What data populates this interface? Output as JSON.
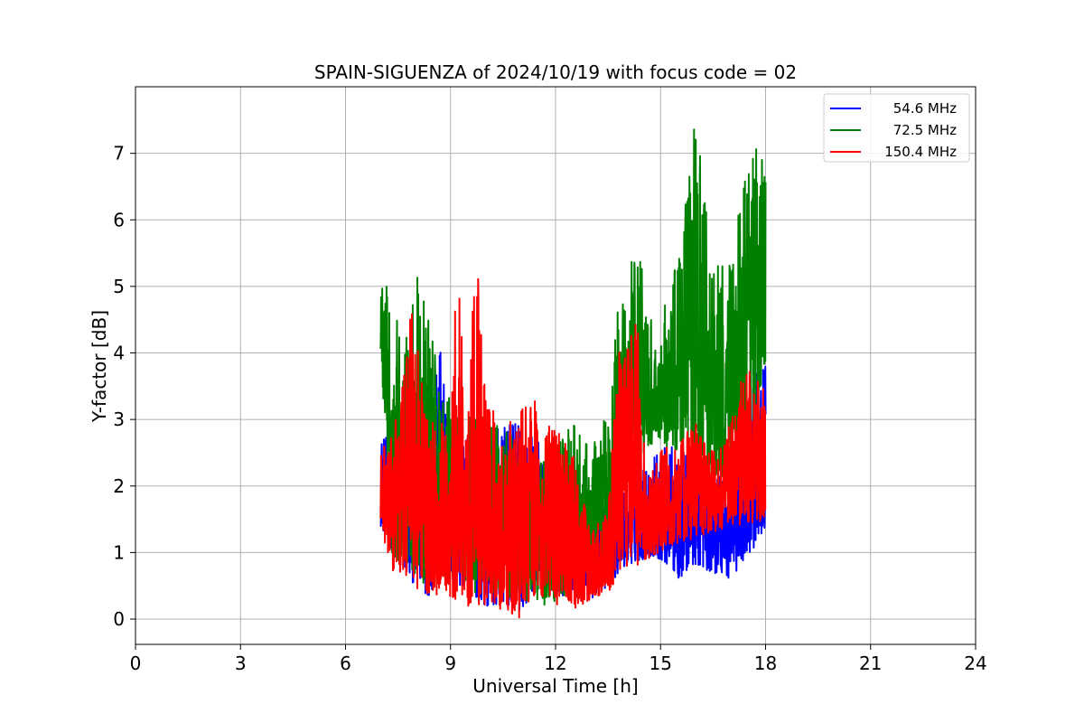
{
  "chart_data": {
    "type": "line",
    "title": "SPAIN-SIGUENZA of 2024/10/19 with focus code = 02",
    "xlabel": "Universal Time [h]",
    "ylabel": "Y-factor [dB]",
    "xlim": [
      0,
      24
    ],
    "ylim": [
      -0.38,
      8.0
    ],
    "xticks": [
      "0",
      "3",
      "6",
      "9",
      "12",
      "15",
      "18",
      "21",
      "24"
    ],
    "yticks": [
      "0",
      "1",
      "2",
      "3",
      "4",
      "5",
      "6",
      "7"
    ],
    "grid": true,
    "legend_position": "top-right",
    "series": [
      {
        "name": "54.6 MHz",
        "color": "#0000ff",
        "x": [
          7.0,
          7.5,
          8.0,
          8.5,
          8.7,
          9.0,
          9.5,
          10.0,
          10.5,
          11.0,
          11.5,
          12.0,
          12.5,
          13.0,
          13.5,
          14.0,
          14.5,
          15.0,
          15.5,
          16.0,
          16.5,
          17.0,
          17.5,
          18.0
        ],
        "lo": [
          1.4,
          0.8,
          0.5,
          0.3,
          1.0,
          0.5,
          0.4,
          0.2,
          0.2,
          0.1,
          0.5,
          0.3,
          0.4,
          0.3,
          0.5,
          0.8,
          0.9,
          0.9,
          0.6,
          0.8,
          0.7,
          0.6,
          0.9,
          1.4
        ],
        "hi": [
          2.8,
          2.6,
          2.6,
          3.8,
          4.1,
          3.0,
          2.9,
          2.8,
          2.9,
          3.0,
          2.7,
          2.6,
          2.0,
          1.4,
          1.8,
          2.0,
          2.3,
          2.6,
          2.6,
          2.5,
          2.4,
          2.4,
          3.6,
          3.8
        ]
      },
      {
        "name": "72.5 MHz",
        "color": "#008000",
        "x": [
          7.0,
          7.3,
          7.6,
          8.0,
          8.4,
          8.8,
          9.2,
          9.6,
          10.0,
          10.5,
          11.0,
          11.5,
          12.0,
          12.5,
          13.0,
          13.5,
          13.8,
          14.0,
          14.3,
          14.6,
          15.0,
          15.5,
          16.0,
          16.5,
          17.0,
          17.5,
          18.0
        ],
        "lo": [
          4.0,
          1.0,
          0.8,
          0.6,
          0.5,
          0.7,
          0.6,
          0.4,
          0.4,
          0.3,
          0.3,
          0.2,
          0.2,
          0.5,
          0.7,
          0.8,
          1.5,
          2.2,
          2.5,
          2.5,
          2.6,
          2.5,
          2.2,
          2.0,
          2.2,
          2.5,
          3.8
        ],
        "hi": [
          5.3,
          4.8,
          4.3,
          5.3,
          4.5,
          3.5,
          3.2,
          3.1,
          3.0,
          2.9,
          2.7,
          2.6,
          2.6,
          3.0,
          2.6,
          3.1,
          5.0,
          4.8,
          6.2,
          4.5,
          4.5,
          5.5,
          7.6,
          5.3,
          5.4,
          7.3,
          6.8
        ]
      },
      {
        "name": "150.4 MHz",
        "color": "#ff0000",
        "x": [
          7.0,
          7.3,
          7.6,
          7.9,
          8.3,
          8.7,
          9.0,
          9.2,
          9.5,
          9.7,
          10.0,
          10.5,
          11.0,
          11.3,
          11.5,
          12.0,
          12.5,
          13.0,
          13.5,
          13.8,
          14.0,
          14.3,
          14.6,
          15.0,
          15.5,
          16.0,
          16.5,
          17.0,
          17.5,
          18.0
        ],
        "lo": [
          1.4,
          0.7,
          0.6,
          0.5,
          0.4,
          0.3,
          0.3,
          0.3,
          0.2,
          0.2,
          0.2,
          0.1,
          0.0,
          0.3,
          0.3,
          0.2,
          0.1,
          0.3,
          0.4,
          0.6,
          0.7,
          0.8,
          0.9,
          1.0,
          1.1,
          1.2,
          1.3,
          1.4,
          1.4,
          1.5
        ],
        "hi": [
          2.5,
          3.0,
          3.5,
          4.8,
          3.0,
          3.0,
          2.9,
          5.6,
          3.0,
          6.2,
          3.3,
          3.0,
          3.1,
          3.8,
          3.0,
          2.9,
          2.5,
          1.3,
          1.7,
          4.2,
          4.0,
          4.9,
          2.0,
          2.6,
          2.6,
          3.0,
          2.5,
          3.0,
          4.0,
          3.4
        ]
      }
    ]
  }
}
